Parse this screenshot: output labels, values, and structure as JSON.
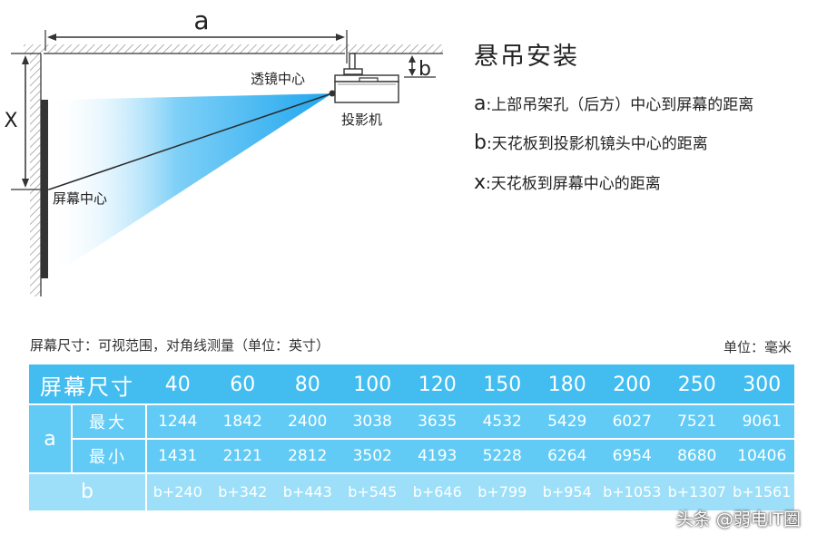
{
  "diagram": {
    "label_a": "a",
    "label_b": "b",
    "label_x": "X",
    "lens_center": "透镜中心",
    "projector": "投影机",
    "screen_center": "屏幕中心"
  },
  "legend": {
    "title": "悬吊安装",
    "items": [
      {
        "key": "a",
        "text": ":上部吊架孔（后方）中心到屏幕的距离"
      },
      {
        "key": "b",
        "text": ":天花板到投影机镜头中心的距离"
      },
      {
        "key": "x",
        "text": ":天花板到屏幕中心的距离"
      }
    ]
  },
  "captions": {
    "left": "屏幕尺寸：可视范围，对角线测量（单位：英寸）",
    "right": "单位：毫米"
  },
  "table": {
    "header_label": "屏幕尺寸",
    "sizes": [
      "40",
      "60",
      "80",
      "100",
      "120",
      "150",
      "180",
      "200",
      "250",
      "300"
    ],
    "a_label": "a",
    "max_label": "最大",
    "min_label": "最小",
    "max_values": [
      "1244",
      "1842",
      "2400",
      "3038",
      "3635",
      "4532",
      "5429",
      "6027",
      "7521",
      "9061"
    ],
    "min_values": [
      "1431",
      "2121",
      "2812",
      "3502",
      "4193",
      "5228",
      "6264",
      "6954",
      "8680",
      "10406"
    ],
    "b_label": "b",
    "b_values": [
      "b+240",
      "b+342",
      "b+443",
      "b+545",
      "b+646",
      "b+799",
      "b+954",
      "b+1053",
      "b+1307",
      "b+1561"
    ]
  },
  "colors": {
    "header": "#43bdf0",
    "rows": "#62cbf5",
    "b_row": "#9ddff9",
    "beam": "#2aaef0"
  },
  "watermark": "头条 @弱电IT圈"
}
